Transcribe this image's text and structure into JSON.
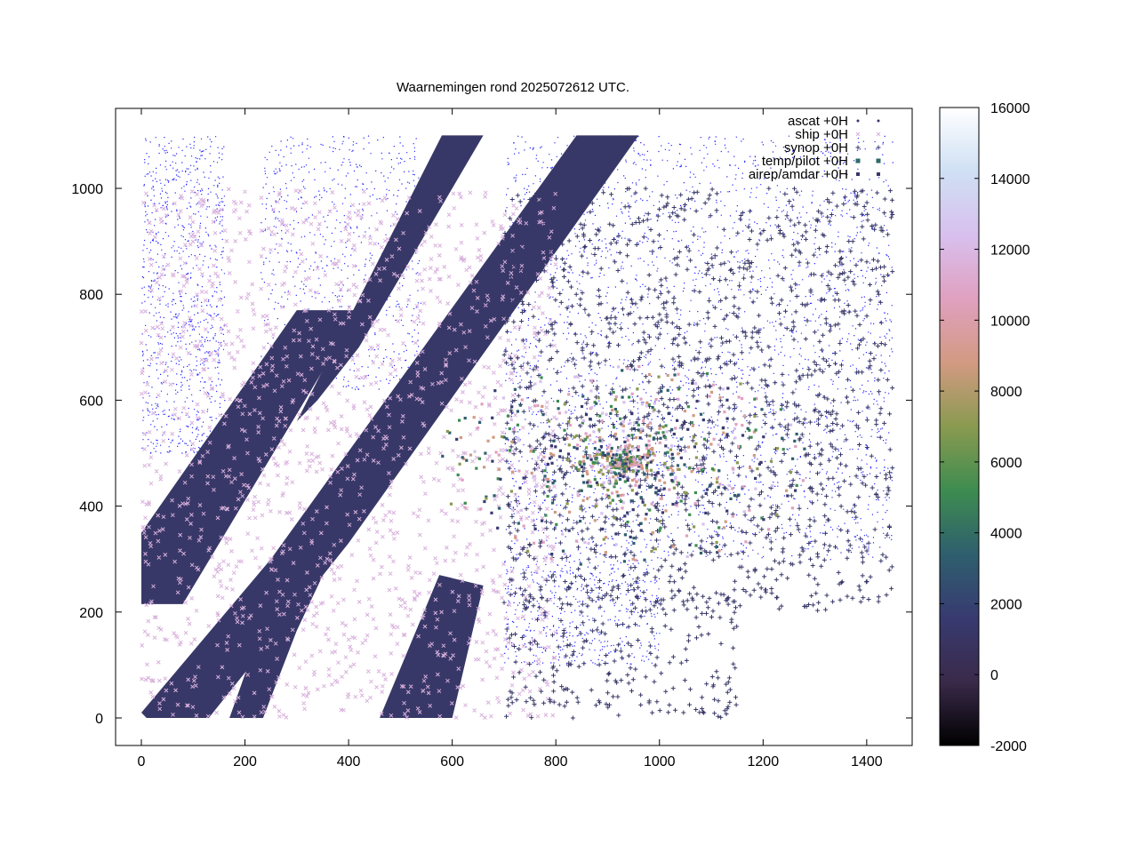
{
  "chart_data": {
    "type": "scatter",
    "title": "Waarnemingen rond 2025072612 UTC.",
    "xlabel": "",
    "ylabel": "",
    "xlim": [
      -50,
      1500
    ],
    "ylim": [
      -50,
      1150
    ],
    "x_ticks": [
      0,
      200,
      400,
      600,
      800,
      1000,
      1200,
      1400
    ],
    "y_ticks": [
      0,
      200,
      400,
      600,
      800,
      1000
    ],
    "grid": false,
    "legend_position": "top-right",
    "colorbar": {
      "min": -2000,
      "max": 16000,
      "ticks": [
        16000,
        14000,
        12000,
        10000,
        8000,
        6000,
        4000,
        2000,
        0,
        -2000
      ],
      "stops": [
        "#000000",
        "#3a2a4a",
        "#383a70",
        "#2e5f6e",
        "#3e8c50",
        "#8a9a50",
        "#d29a82",
        "#e0a0c0",
        "#d8c0ee",
        "#cfe0f4",
        "#ffffff"
      ]
    },
    "series": [
      {
        "name": "ascat +0H",
        "marker": "dot",
        "color": "#383868",
        "swaths": [
          {
            "x": [
              0,
              0,
              380,
              620,
              980,
              920,
              540,
              120
            ],
            "y": [
              0,
              350,
              1100,
              1100,
              1100,
              1100,
              350,
              0
            ]
          },
          {
            "x": [
              0,
              0,
              290,
              420,
              960,
              840,
              380,
              150
            ],
            "y": [
              215,
              340,
              770,
              770,
              1100,
              1100,
              330,
              215
            ]
          },
          {
            "x": [
              0,
              130,
              400,
              405,
              660,
              540,
              250,
              0
            ],
            "y": [
              0,
              0,
              350,
              350,
              1100,
              1100,
              300,
              0
            ]
          },
          {
            "x": [
              170,
              230,
              300,
              350,
              270
            ],
            "y": [
              0,
              0,
              170,
              290,
              270
            ]
          },
          {
            "x": [
              460,
              600,
              660,
              570
            ],
            "y": [
              0,
              0,
              250,
              270
            ]
          }
        ]
      },
      {
        "name": "ship +0H",
        "marker": "cross",
        "color": "#d8b0dc"
      },
      {
        "name": "synop +0H",
        "marker": "plus",
        "color": "#383868"
      },
      {
        "name": "temp/pilot +0H",
        "marker": "square",
        "color": "#2e6a6a"
      },
      {
        "name": "airep/amdar +0H",
        "marker": "filled-square",
        "color": "#383868"
      }
    ]
  },
  "background_map_color": "#0000ff"
}
